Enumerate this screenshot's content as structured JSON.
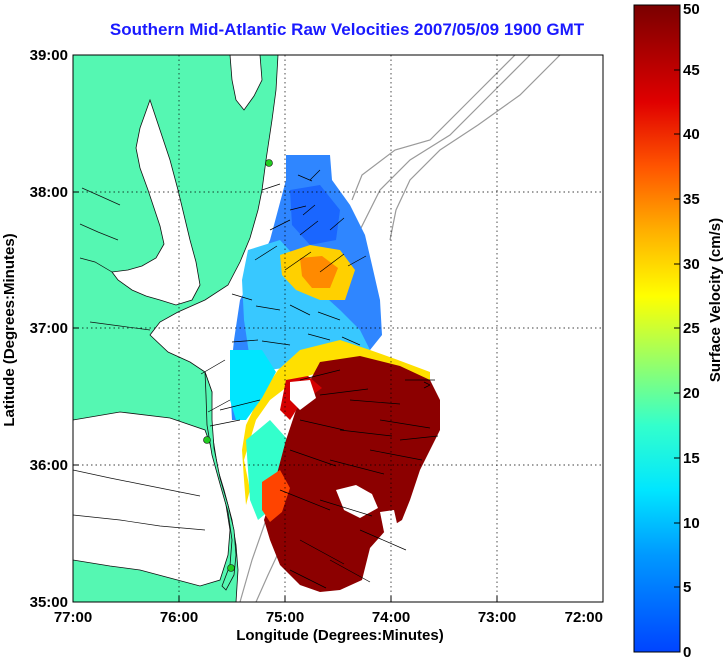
{
  "title": "Southern Mid-Atlantic Raw Velocities 2007/05/09 1900 GMT",
  "axes": {
    "x_label": "Longitude (Degrees:Minutes)",
    "y_label": "Latitude (Degrees:Minutes)",
    "x_ticks": [
      "77:00",
      "76:00",
      "75:00",
      "74:00",
      "73:00",
      "72:00"
    ],
    "y_ticks": [
      "39:00",
      "38:00",
      "37:00",
      "36:00",
      "35:00"
    ]
  },
  "colorbar": {
    "label": "Surface Velocity (cm/s)",
    "ticks": [
      "0",
      "5",
      "10",
      "15",
      "20",
      "25",
      "30",
      "35",
      "40",
      "45",
      "50"
    ],
    "min": 0,
    "max": 50
  },
  "colors": {
    "land": "#55f7b2",
    "coast": "#111111",
    "bathymetry": "#9a9a9a",
    "arrows": "#000000",
    "title": "#1a1aff",
    "station_marker": "#22cc22"
  },
  "map": {
    "lon_range": [
      -77,
      -72
    ],
    "lat_range": [
      35,
      39
    ],
    "grid": true,
    "projection": "lon/lat",
    "stations": [
      "station-north",
      "station-middle",
      "station-south"
    ]
  }
}
